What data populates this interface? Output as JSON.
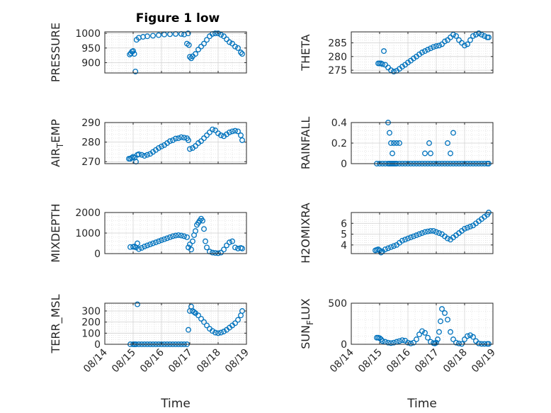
{
  "figure": {
    "title": "Figure 1 low",
    "marker_color": "#0072BD",
    "xlabel": "Time",
    "xticks": [
      "08/14",
      "08/15",
      "08/16",
      "08/17",
      "08/18",
      "08/19"
    ]
  },
  "chart_data": [
    {
      "type": "scatter",
      "marker": "circle",
      "ylabel": "PRESSURE",
      "ylim": [
        865,
        1005
      ],
      "yticks": [
        900,
        950,
        1000
      ],
      "grid": true,
      "title": "Figure 1 low",
      "x": [
        14.88,
        14.92,
        14.96,
        15.0,
        15.04,
        15.08,
        15.12,
        15.2,
        15.35,
        15.5,
        15.7,
        15.9,
        16.1,
        16.3,
        16.5,
        16.7,
        16.8,
        16.9,
        16.94,
        16.97,
        17.0,
        17.05,
        17.1,
        17.2,
        17.3,
        17.4,
        17.5,
        17.6,
        17.7,
        17.8,
        17.9,
        18.0,
        18.1,
        18.2,
        18.3,
        18.4,
        18.5,
        18.6,
        18.7,
        18.8,
        18.85
      ],
      "y": [
        928,
        932,
        938,
        940,
        930,
        870,
        978,
        985,
        988,
        990,
        992,
        994,
        996,
        997,
        998,
        998,
        996,
        965,
        1000,
        960,
        920,
        915,
        922,
        930,
        945,
        955,
        965,
        978,
        990,
        998,
        1000,
        1000,
        995,
        990,
        980,
        970,
        965,
        955,
        950,
        935,
        930
      ]
    },
    {
      "type": "scatter",
      "marker": "circle",
      "ylabel": "THETA",
      "ylim": [
        274,
        289
      ],
      "yticks": [
        275,
        280,
        285
      ],
      "grid": true,
      "x": [
        14.95,
        15.0,
        15.05,
        15.1,
        15.15,
        15.2,
        15.3,
        15.4,
        15.5,
        15.6,
        15.7,
        15.8,
        15.9,
        16.0,
        16.1,
        16.2,
        16.3,
        16.4,
        16.5,
        16.6,
        16.7,
        16.8,
        16.9,
        17.0,
        17.1,
        17.2,
        17.3,
        17.4,
        17.5,
        17.6,
        17.7,
        17.8,
        17.9,
        18.0,
        18.1,
        18.2,
        18.3,
        18.4,
        18.5,
        18.6,
        18.7,
        18.8,
        18.85
      ],
      "y": [
        277.5,
        277.5,
        277.5,
        277.2,
        282,
        277,
        276,
        275,
        274.5,
        274.8,
        275.5,
        276.3,
        277,
        277.8,
        278.5,
        279.3,
        280,
        280.8,
        281.5,
        282,
        282.5,
        283,
        283.5,
        283.8,
        284,
        284.5,
        285.5,
        286,
        287,
        288,
        287.5,
        286,
        285,
        284,
        284.5,
        286,
        287.5,
        288,
        288.5,
        288,
        287.5,
        287,
        287
      ]
    },
    {
      "type": "scatter",
      "marker": "circle",
      "ylabel": "AIR_TEMP",
      "ylim": [
        269,
        290
      ],
      "yticks": [
        270,
        280,
        290
      ],
      "grid": true,
      "x": [
        14.85,
        14.9,
        14.95,
        15.0,
        15.05,
        15.1,
        15.15,
        15.2,
        15.3,
        15.4,
        15.5,
        15.6,
        15.7,
        15.8,
        15.9,
        16.0,
        16.1,
        16.2,
        16.3,
        16.4,
        16.5,
        16.6,
        16.7,
        16.8,
        16.9,
        16.95,
        17.0,
        17.1,
        17.2,
        17.3,
        17.4,
        17.5,
        17.6,
        17.7,
        17.8,
        17.9,
        18.0,
        18.1,
        18.2,
        18.3,
        18.4,
        18.5,
        18.6,
        18.7,
        18.8,
        18.85
      ],
      "y": [
        271.5,
        271.5,
        272,
        272.5,
        272,
        270,
        273.5,
        273.8,
        273.5,
        273,
        273.5,
        274,
        275,
        276,
        277,
        277.8,
        278.5,
        279.5,
        280.5,
        281,
        281.8,
        282,
        282.5,
        282.3,
        282,
        281,
        276.5,
        277,
        278,
        279.5,
        280.5,
        282,
        283.5,
        285,
        286.5,
        286,
        284.5,
        283.5,
        283,
        284,
        285,
        285.5,
        285.8,
        285.5,
        283.5,
        281
      ]
    },
    {
      "type": "scatter",
      "marker": "circle",
      "ylabel": "RAINFALL",
      "ylim": [
        0,
        0.4
      ],
      "yticks": [
        0,
        0.2,
        0.4
      ],
      "grid": true,
      "x": [
        14.9,
        15.0,
        15.1,
        15.2,
        15.3,
        15.35,
        15.4,
        15.45,
        15.5,
        15.55,
        15.6,
        15.7,
        15.8,
        15.9,
        16.0,
        16.1,
        16.2,
        16.3,
        16.4,
        16.5,
        16.6,
        16.7,
        16.8,
        16.9,
        17.0,
        17.1,
        17.2,
        17.3,
        17.4,
        17.5,
        17.6,
        17.7,
        17.8,
        17.9,
        18.0,
        18.1,
        18.2,
        18.3,
        18.4,
        18.5,
        18.6,
        18.7,
        18.8,
        18.85,
        15.3,
        15.35,
        15.4,
        15.45,
        15.5,
        15.6,
        15.7,
        16.6,
        16.75,
        16.8,
        17.4,
        17.5,
        17.6
      ],
      "y": [
        0,
        0,
        0,
        0,
        0,
        0,
        0,
        0,
        0,
        0,
        0,
        0,
        0,
        0,
        0,
        0,
        0,
        0,
        0,
        0,
        0,
        0,
        0,
        0,
        0,
        0,
        0,
        0,
        0,
        0,
        0,
        0,
        0,
        0,
        0,
        0,
        0,
        0,
        0,
        0,
        0,
        0,
        0,
        0,
        0.4,
        0.3,
        0.2,
        0.1,
        0.2,
        0.2,
        0.2,
        0.1,
        0.2,
        0.1,
        0.2,
        0.1,
        0.3
      ]
    },
    {
      "type": "scatter",
      "marker": "circle",
      "ylabel": "MIXDEPTH",
      "ylim": [
        0,
        2000
      ],
      "yticks": [
        0,
        1000,
        2000
      ],
      "grid": true,
      "x": [
        14.9,
        15.0,
        15.05,
        15.1,
        15.15,
        15.2,
        15.3,
        15.4,
        15.5,
        15.6,
        15.7,
        15.8,
        15.9,
        16.0,
        16.1,
        16.2,
        16.3,
        16.4,
        16.5,
        16.6,
        16.7,
        16.8,
        16.9,
        16.95,
        17.0,
        17.05,
        17.1,
        17.15,
        17.2,
        17.25,
        17.3,
        17.35,
        17.4,
        17.45,
        17.5,
        17.55,
        17.6,
        17.7,
        17.8,
        17.9,
        18.0,
        18.1,
        18.2,
        18.3,
        18.4,
        18.5,
        18.6,
        18.7,
        18.8,
        18.85
      ],
      "y": [
        320,
        330,
        350,
        300,
        500,
        220,
        280,
        350,
        400,
        450,
        500,
        550,
        600,
        650,
        700,
        750,
        800,
        850,
        880,
        900,
        880,
        850,
        800,
        300,
        450,
        200,
        600,
        900,
        1100,
        1400,
        1500,
        1600,
        1700,
        1600,
        1200,
        600,
        300,
        100,
        50,
        30,
        20,
        50,
        200,
        400,
        550,
        600,
        300,
        250,
        280,
        250
      ]
    },
    {
      "type": "scatter",
      "marker": "circle",
      "ylabel": "H2OMIXRA",
      "ylim": [
        3.2,
        7
      ],
      "yticks": [
        4,
        5,
        6
      ],
      "grid": true,
      "x": [
        14.85,
        14.9,
        14.95,
        15.0,
        15.05,
        15.1,
        15.2,
        15.3,
        15.4,
        15.5,
        15.6,
        15.7,
        15.8,
        15.9,
        16.0,
        16.1,
        16.2,
        16.3,
        16.4,
        16.5,
        16.6,
        16.7,
        16.8,
        16.9,
        17.0,
        17.1,
        17.2,
        17.3,
        17.4,
        17.5,
        17.6,
        17.7,
        17.8,
        17.9,
        18.0,
        18.1,
        18.2,
        18.3,
        18.4,
        18.5,
        18.6,
        18.7,
        18.8,
        18.85
      ],
      "y": [
        3.5,
        3.55,
        3.6,
        3.5,
        3.3,
        3.4,
        3.6,
        3.7,
        3.8,
        3.9,
        4.0,
        4.2,
        4.4,
        4.5,
        4.6,
        4.7,
        4.8,
        4.9,
        5.0,
        5.1,
        5.2,
        5.25,
        5.3,
        5.3,
        5.2,
        5.1,
        5.0,
        4.8,
        4.6,
        4.5,
        4.7,
        4.9,
        5.1,
        5.3,
        5.5,
        5.6,
        5.7,
        5.8,
        6.0,
        6.2,
        6.4,
        6.6,
        6.8,
        7.0
      ]
    },
    {
      "type": "scatter",
      "marker": "circle",
      "ylabel": "TERR_MSL",
      "ylim": [
        0,
        370
      ],
      "yticks": [
        0,
        100,
        200,
        300
      ],
      "grid": true,
      "x": [
        14.9,
        15.0,
        15.05,
        15.1,
        15.15,
        15.2,
        15.3,
        15.4,
        15.5,
        15.6,
        15.7,
        15.8,
        15.9,
        16.0,
        16.1,
        16.2,
        16.3,
        16.4,
        16.5,
        16.6,
        16.7,
        16.8,
        16.9,
        16.95,
        17.0,
        17.05,
        17.1,
        17.15,
        17.2,
        17.3,
        17.4,
        17.5,
        17.6,
        17.7,
        17.8,
        17.9,
        18.0,
        18.1,
        18.2,
        18.3,
        18.4,
        18.5,
        18.6,
        18.7,
        18.8,
        18.85
      ],
      "y": [
        0,
        0,
        0,
        0,
        360,
        0,
        0,
        0,
        0,
        0,
        0,
        0,
        0,
        0,
        0,
        0,
        0,
        0,
        0,
        0,
        0,
        0,
        0,
        130,
        300,
        340,
        300,
        290,
        280,
        260,
        230,
        200,
        170,
        140,
        120,
        105,
        100,
        105,
        115,
        130,
        150,
        170,
        190,
        220,
        260,
        300
      ]
    },
    {
      "type": "scatter",
      "marker": "circle",
      "ylabel": "SUN_FLUX",
      "ylim": [
        0,
        500
      ],
      "yticks": [
        0,
        500
      ],
      "grid": true,
      "x": [
        14.9,
        14.95,
        15.0,
        15.05,
        15.1,
        15.2,
        15.3,
        15.4,
        15.5,
        15.6,
        15.7,
        15.8,
        15.9,
        16.0,
        16.1,
        16.2,
        16.3,
        16.4,
        16.5,
        16.6,
        16.7,
        16.8,
        16.9,
        16.95,
        17.0,
        17.05,
        17.1,
        17.15,
        17.2,
        17.3,
        17.4,
        17.5,
        17.6,
        17.7,
        17.8,
        17.9,
        18.0,
        18.1,
        18.2,
        18.3,
        18.4,
        18.5,
        18.6,
        18.7,
        18.8,
        18.85
      ],
      "y": [
        80,
        80,
        75,
        60,
        40,
        30,
        20,
        15,
        20,
        30,
        40,
        50,
        45,
        20,
        10,
        20,
        60,
        120,
        160,
        140,
        80,
        30,
        15,
        10,
        20,
        60,
        150,
        280,
        430,
        380,
        300,
        150,
        60,
        20,
        10,
        5,
        60,
        100,
        110,
        90,
        40,
        10,
        5,
        5,
        5,
        5
      ]
    }
  ]
}
